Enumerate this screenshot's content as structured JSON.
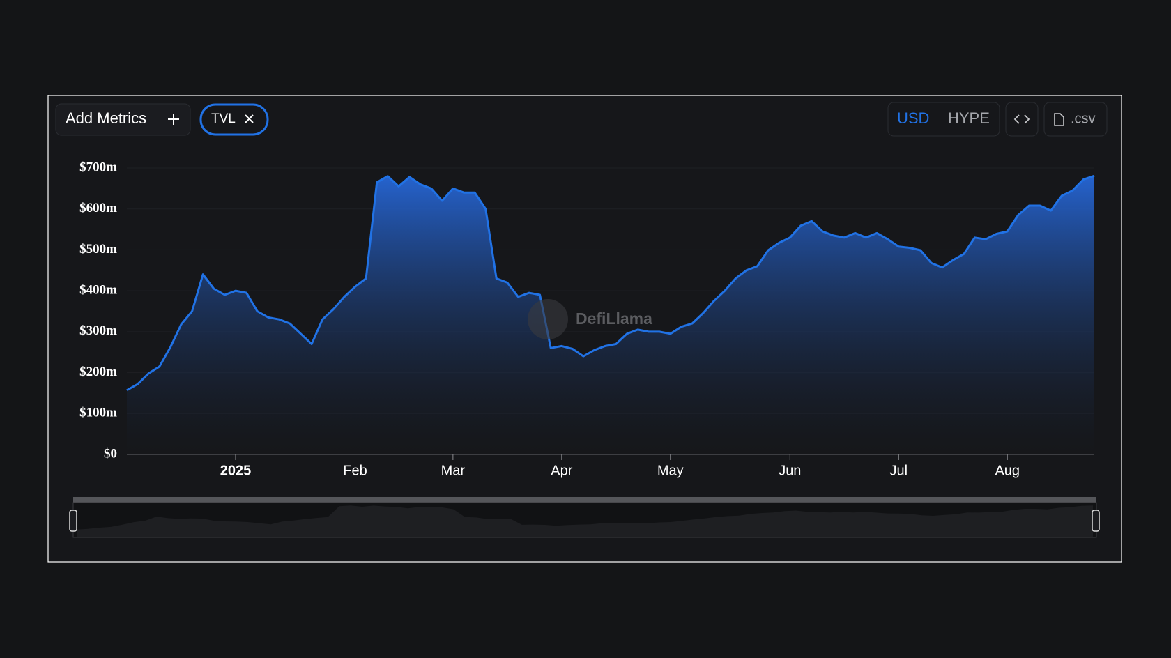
{
  "toolbar": {
    "add_metrics": "Add Metrics",
    "metric": "TVL",
    "currencies": [
      "USD",
      "HYPE"
    ],
    "csv": ".csv"
  },
  "watermark": "DefiLlama",
  "chart_data": {
    "type": "area",
    "categories": [
      null,
      null,
      null,
      null,
      null,
      null,
      null,
      null,
      null,
      null,
      "2025",
      null,
      null,
      null,
      null,
      null,
      null,
      null,
      null,
      null,
      null,
      "Feb",
      null,
      null,
      null,
      null,
      null,
      null,
      null,
      null,
      "Mar",
      null,
      null,
      null,
      null,
      null,
      null,
      null,
      null,
      null,
      "Apr",
      null,
      null,
      null,
      null,
      null,
      null,
      null,
      null,
      null,
      "May",
      null,
      null,
      null,
      null,
      null,
      null,
      null,
      null,
      null,
      null,
      "Jun",
      null,
      null,
      null,
      null,
      null,
      null,
      null,
      null,
      null,
      "Jul",
      null,
      null,
      null,
      null,
      null,
      null,
      null,
      null,
      null,
      "Aug",
      null,
      null,
      null,
      null,
      null,
      null,
      null,
      null
    ],
    "series": [
      {
        "name": "TVL",
        "color": "#2172e5",
        "values": [
          157000000,
          172000000,
          198000000,
          215000000,
          262000000,
          318000000,
          350000000,
          440000000,
          405000000,
          390000000,
          400000000,
          395000000,
          350000000,
          335000000,
          330000000,
          320000000,
          295000000,
          270000000,
          330000000,
          355000000,
          385000000,
          410000000,
          430000000,
          665000000,
          680000000,
          655000000,
          678000000,
          660000000,
          650000000,
          620000000,
          650000000,
          640000000,
          640000000,
          600000000,
          430000000,
          420000000,
          385000000,
          395000000,
          390000000,
          260000000,
          265000000,
          258000000,
          240000000,
          255000000,
          265000000,
          270000000,
          295000000,
          305000000,
          300000000,
          300000000,
          295000000,
          312000000,
          320000000,
          345000000,
          375000000,
          400000000,
          430000000,
          450000000,
          460000000,
          499000000,
          517000000,
          530000000,
          559000000,
          570000000,
          545000000,
          535000000,
          530000000,
          541000000,
          530000000,
          541000000,
          526000000,
          508000000,
          505000000,
          499000000,
          468000000,
          457000000,
          475000000,
          490000000,
          530000000,
          526000000,
          539000000,
          545000000,
          585000000,
          608000000,
          608000000,
          596000000,
          632000000,
          645000000,
          672000000,
          681000000
        ]
      }
    ],
    "ylim": [
      0,
      700000000
    ],
    "yticks": [
      {
        "value": 0,
        "label": "$0"
      },
      {
        "value": 100000000,
        "label": "$100m"
      },
      {
        "value": 200000000,
        "label": "$200m"
      },
      {
        "value": 300000000,
        "label": "$300m"
      },
      {
        "value": 400000000,
        "label": "$400m"
      },
      {
        "value": 500000000,
        "label": "$500m"
      },
      {
        "value": 600000000,
        "label": "$600m"
      },
      {
        "value": 700000000,
        "label": "$700m"
      }
    ],
    "grid": true
  }
}
